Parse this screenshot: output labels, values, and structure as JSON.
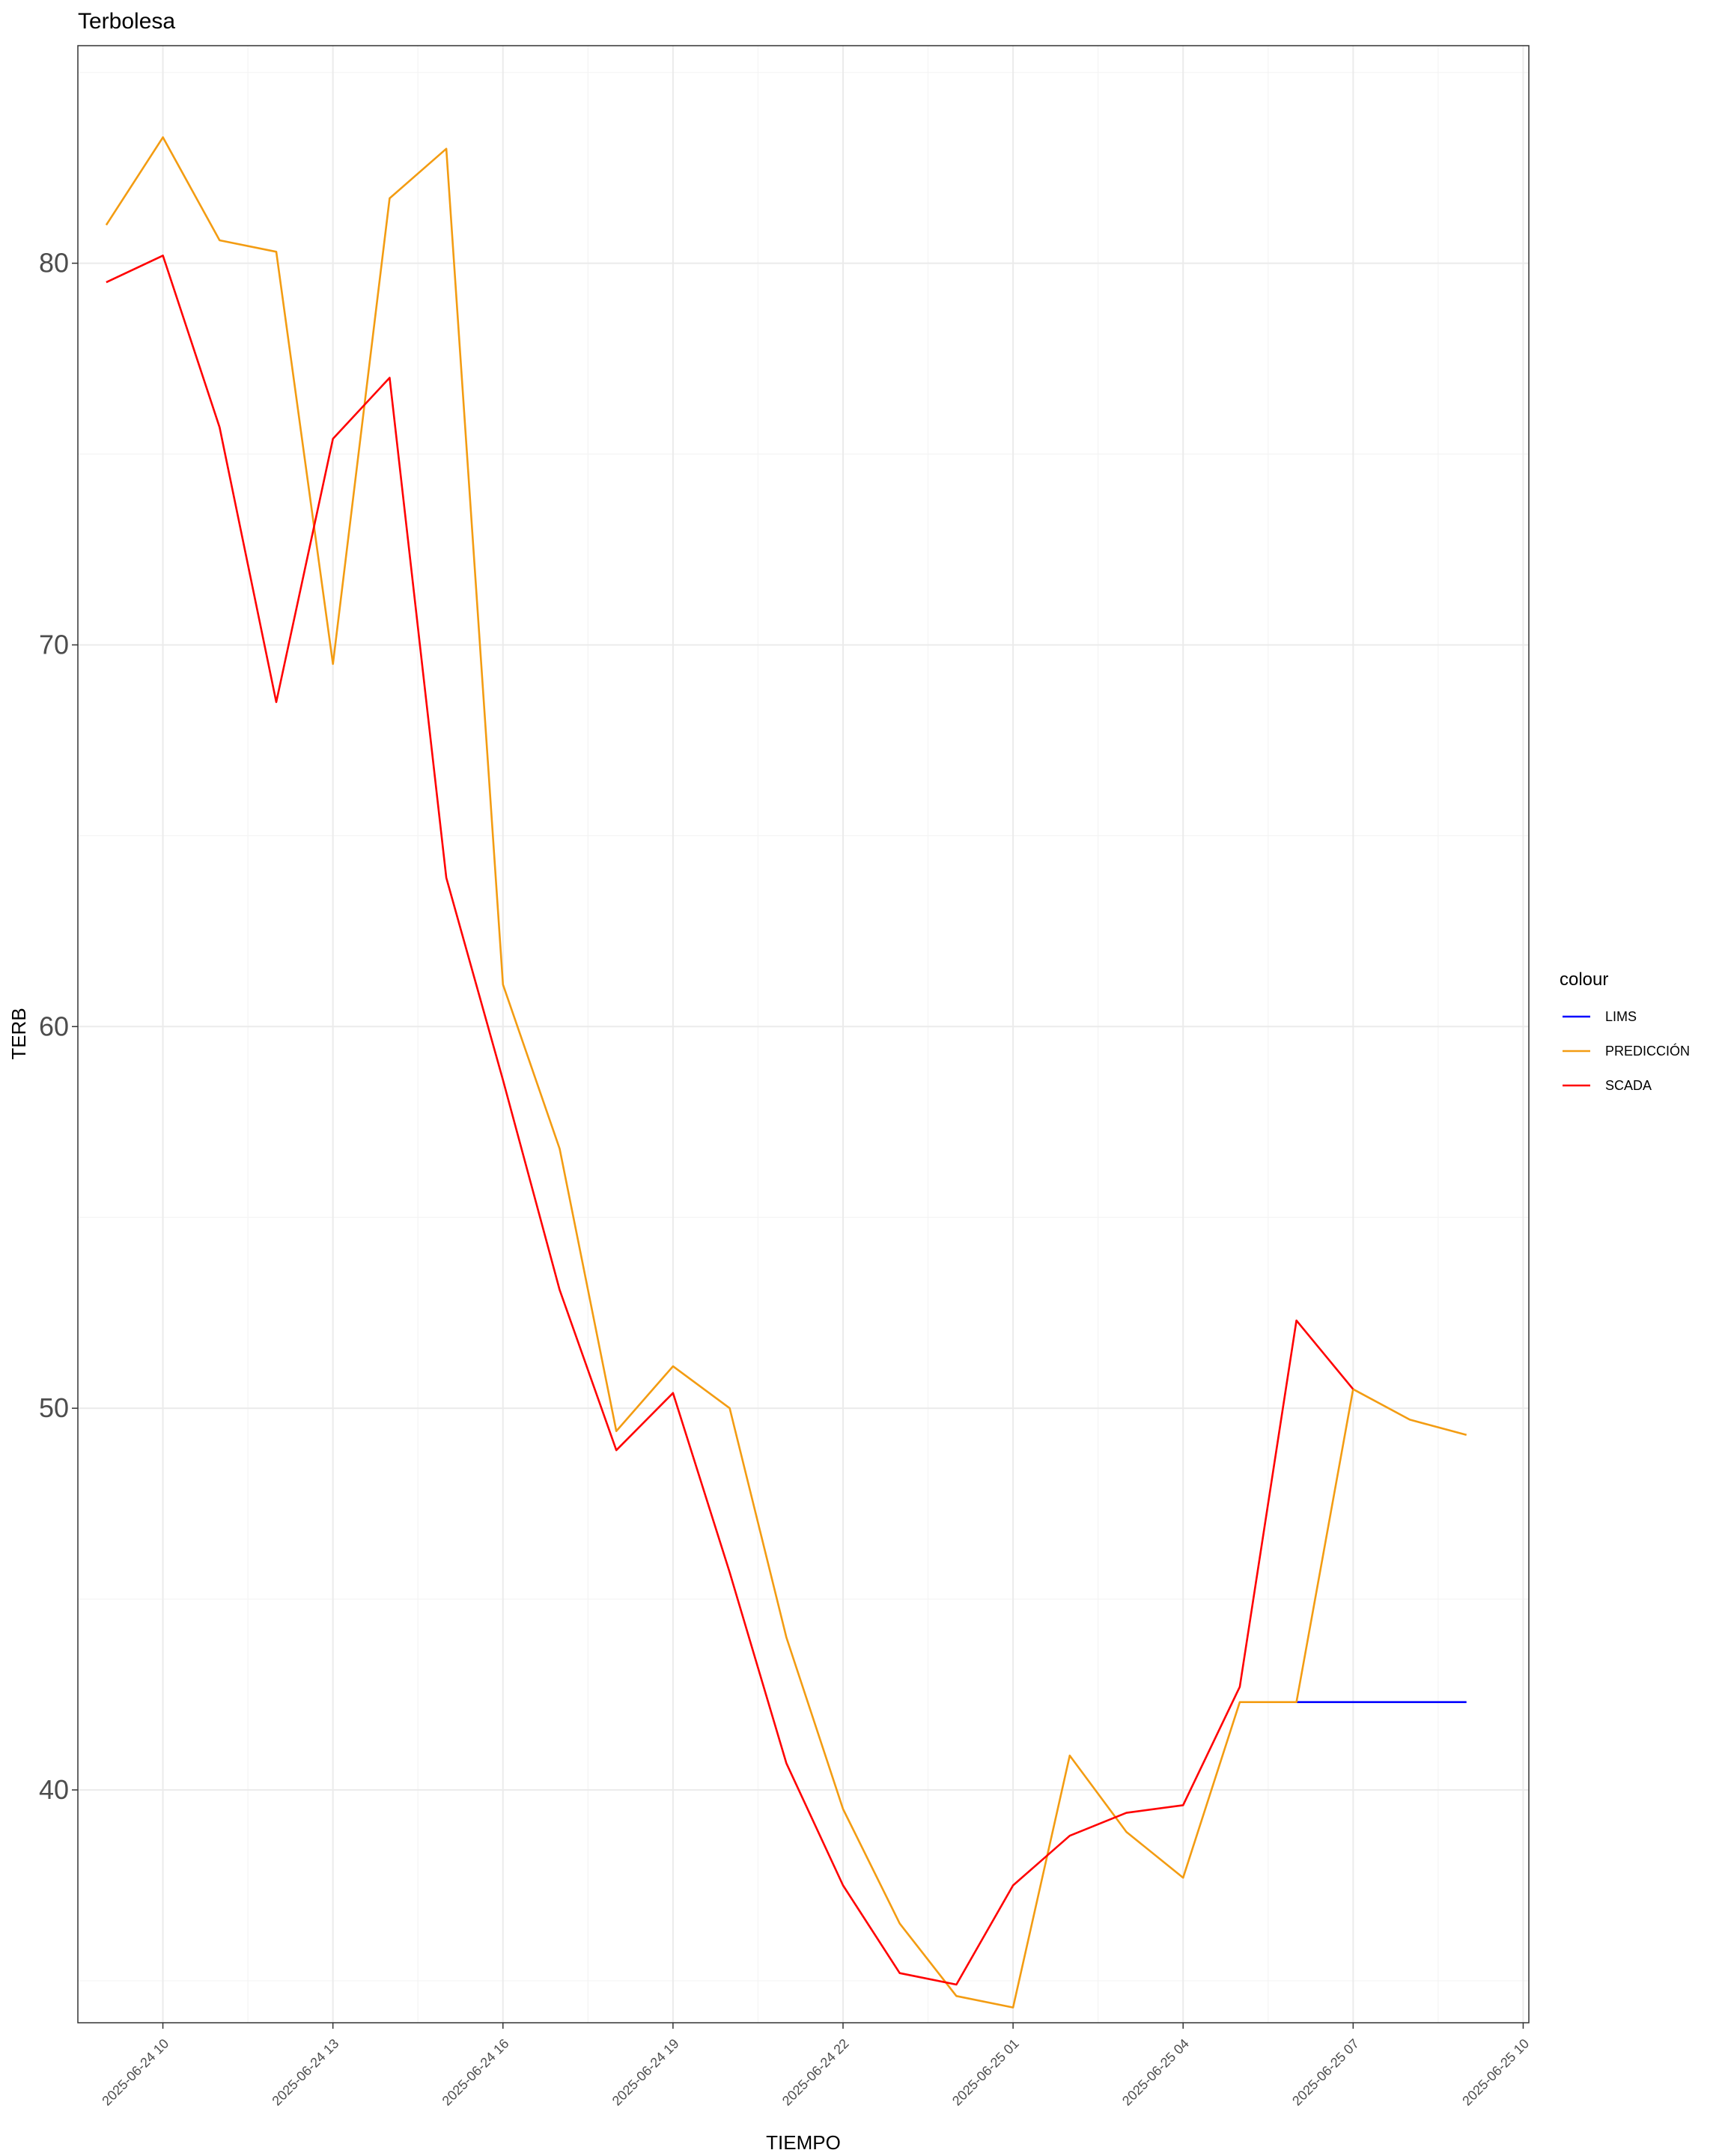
{
  "chart_data": {
    "type": "line",
    "title": "Terbolesa",
    "xlabel": "TIEMPO",
    "ylabel": "TERB",
    "x_unit": "hour",
    "x": [
      "2025-06-24 09",
      "2025-06-24 10",
      "2025-06-24 11",
      "2025-06-24 12",
      "2025-06-24 13",
      "2025-06-24 14",
      "2025-06-24 15",
      "2025-06-24 16",
      "2025-06-24 17",
      "2025-06-24 18",
      "2025-06-24 19",
      "2025-06-24 20",
      "2025-06-24 21",
      "2025-06-24 22",
      "2025-06-24 23",
      "2025-06-25 00",
      "2025-06-25 01",
      "2025-06-25 02",
      "2025-06-25 03",
      "2025-06-25 04",
      "2025-06-25 05",
      "2025-06-25 06",
      "2025-06-25 07",
      "2025-06-25 08",
      "2025-06-25 09"
    ],
    "xlim": [
      "2025-06-24 08:30",
      "2025-06-25 10:06"
    ],
    "xticks": [
      "2025-06-24 10",
      "2025-06-24 13",
      "2025-06-24 16",
      "2025-06-24 19",
      "2025-06-24 22",
      "2025-06-25 01",
      "2025-06-25 04",
      "2025-06-25 07",
      "2025-06-25 10"
    ],
    "ylim": [
      33.9,
      85.7
    ],
    "yticks": [
      40,
      50,
      60,
      70,
      80
    ],
    "grid": true,
    "legend_title": "colour",
    "legend_position": "right",
    "series": [
      {
        "name": "LIMS",
        "color": "#0000ff",
        "values": [
          null,
          null,
          null,
          null,
          null,
          null,
          null,
          null,
          null,
          null,
          null,
          null,
          null,
          null,
          null,
          null,
          null,
          null,
          null,
          null,
          null,
          42.3,
          42.3,
          42.3,
          42.3
        ]
      },
      {
        "name": "PREDICCIÓN",
        "color": "#f39c12",
        "values": [
          81.0,
          83.3,
          80.6,
          80.3,
          69.5,
          81.7,
          83.0,
          61.1,
          56.8,
          49.4,
          51.1,
          50.0,
          44.0,
          39.5,
          36.5,
          34.6,
          34.3,
          40.9,
          38.9,
          37.7,
          42.3,
          42.3,
          50.5,
          49.7,
          49.3
        ]
      },
      {
        "name": "SCADA",
        "color": "#ff0000",
        "values": [
          79.5,
          80.2,
          75.7,
          68.5,
          75.4,
          77.0,
          63.9,
          58.6,
          53.1,
          48.9,
          50.4,
          45.7,
          40.7,
          37.5,
          35.2,
          34.9,
          37.5,
          38.8,
          39.4,
          39.6,
          42.7,
          52.3,
          50.5,
          null,
          null
        ]
      }
    ]
  }
}
